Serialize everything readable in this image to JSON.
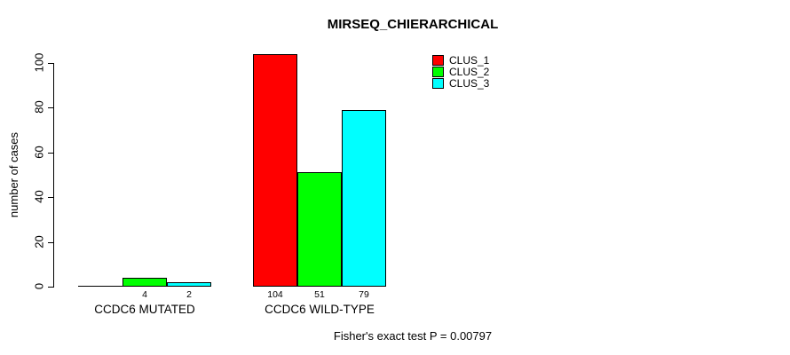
{
  "chart_data": {
    "type": "bar",
    "title": "MIRSEQ_CHIERARCHICAL",
    "ylabel": "number of cases",
    "xlabel": "",
    "ylim": [
      0,
      104
    ],
    "yticks": [
      0,
      20,
      40,
      60,
      80,
      100
    ],
    "grid": false,
    "legend_position": "top-right",
    "categories": [
      "CCDC6 MUTATED",
      "CCDC6 WILD-TYPE"
    ],
    "series": [
      {
        "name": "CLUS_1",
        "color": "#ff0000",
        "values": [
          0,
          104
        ],
        "value_labels": [
          "",
          "104"
        ]
      },
      {
        "name": "CLUS_2",
        "color": "#00ff00",
        "values": [
          4,
          51
        ],
        "value_labels": [
          "4",
          "51"
        ]
      },
      {
        "name": "CLUS_3",
        "color": "#00ffff",
        "values": [
          2,
          79
        ],
        "value_labels": [
          "2",
          "79"
        ]
      }
    ],
    "caption": "Fisher's exact test P = 0.00797"
  }
}
